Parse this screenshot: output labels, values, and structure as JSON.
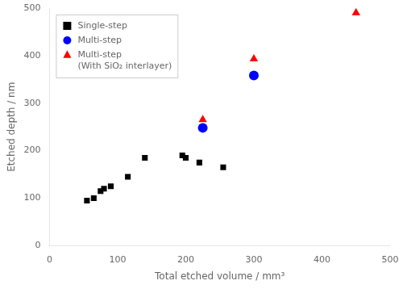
{
  "chart_data": {
    "type": "scatter",
    "x_label": "Total etched volume / mm³",
    "y_label": "Etched depth / nm",
    "series": [
      {
        "name": "Single-step",
        "color": "black",
        "marker": "square",
        "x": [
          55,
          65,
          75,
          80,
          90,
          115,
          140,
          195,
          200,
          220,
          255
        ],
        "values": [
          95,
          100,
          115,
          120,
          125,
          145,
          185,
          190,
          185,
          175,
          165
        ]
      },
      {
        "name": "Multi-step",
        "color": "blue",
        "marker": "circle",
        "x": [
          225,
          300
        ],
        "values": [
          248,
          358
        ]
      },
      {
        "name": "Multi-step\n(With SiO₂ interlayer)",
        "color": "red",
        "marker": "triangle",
        "x": [
          225,
          300,
          450
        ],
        "values": [
          265,
          393,
          490
        ]
      }
    ],
    "xlim": [
      0,
      500
    ],
    "ylim": [
      0,
      500
    ],
    "xticks": [
      0,
      100,
      200,
      300,
      400,
      500
    ],
    "yticks": [
      0,
      100,
      200,
      300,
      400,
      500
    ],
    "grid": false,
    "legend": "upper left"
  }
}
